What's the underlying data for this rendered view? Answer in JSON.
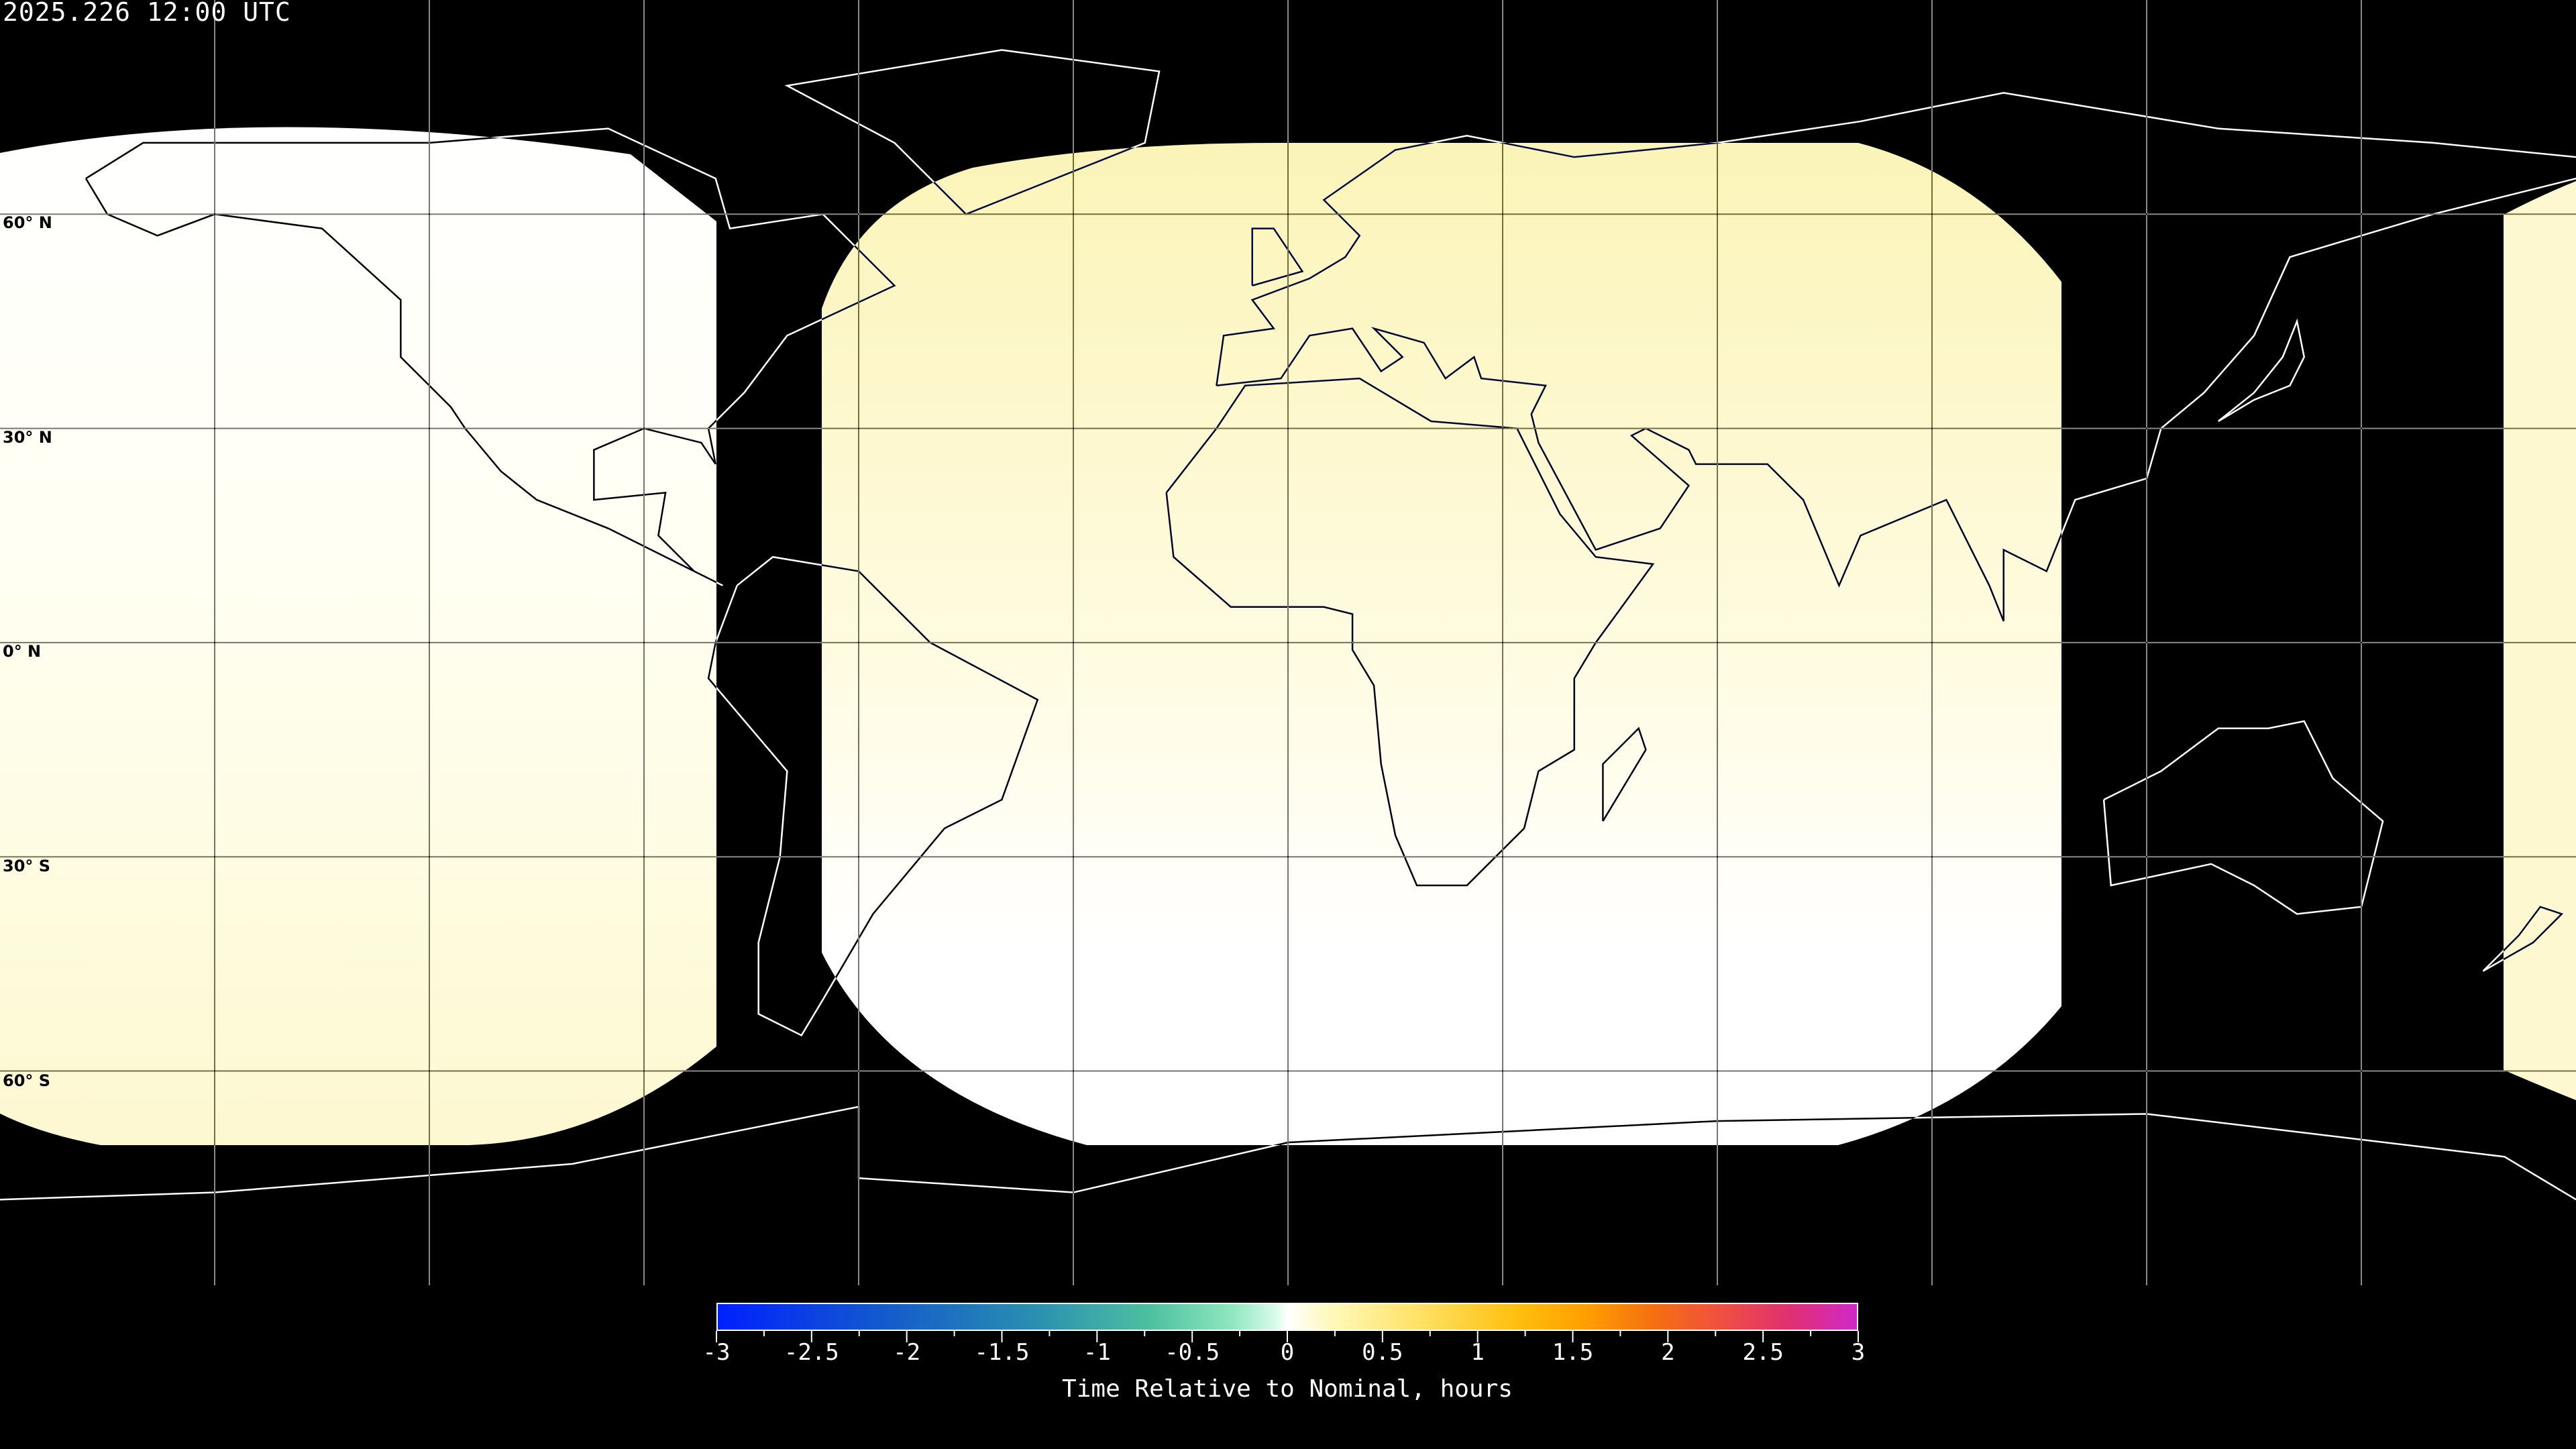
{
  "header": {
    "timestamp": "2025.226 12:00 UTC"
  },
  "map": {
    "projection": "equirectangular",
    "center_longitude": 0,
    "graticule_spacing_degrees": 30,
    "latitude_labels": [
      "60° N",
      "30° N",
      "0° N",
      "30° S",
      "60° S"
    ],
    "background_color": "#000000",
    "coverage_colors": {
      "near_zero": "#ffffff",
      "slightly_late": "#fdf8c4"
    }
  },
  "colorbar": {
    "min": -3,
    "max": 3,
    "tick_labels": [
      "-3",
      "-2.5",
      "-2",
      "-1.5",
      "-1",
      "-0.5",
      "0",
      "0.5",
      "1",
      "1.5",
      "2",
      "2.5",
      "3"
    ],
    "label": "Time Relative to Nominal, hours",
    "colors": [
      "#0020ff",
      "#2a90b0",
      "#8ee6bd",
      "#ffffff",
      "#ffc010",
      "#f05040",
      "#d028c8"
    ]
  }
}
